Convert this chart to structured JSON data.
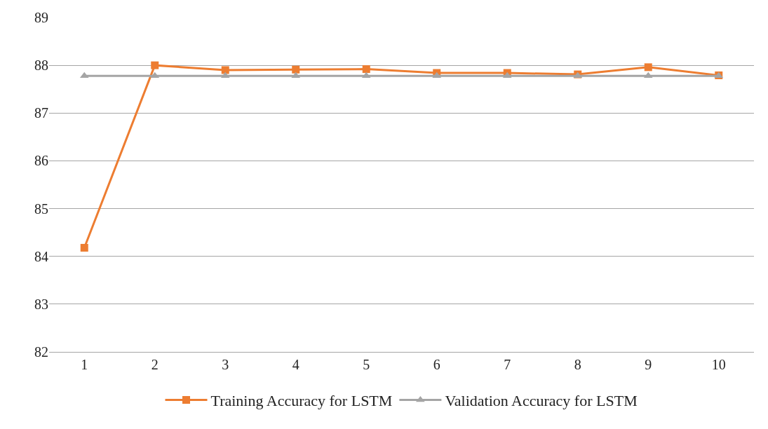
{
  "chart_data": {
    "type": "line",
    "categories": [
      "1",
      "2",
      "3",
      "4",
      "5",
      "6",
      "7",
      "8",
      "9",
      "10"
    ],
    "series": [
      {
        "name": "Training Accuracy for LSTM",
        "color": "#ed7d31",
        "marker": "square",
        "values": [
          84.18,
          88.0,
          87.9,
          87.91,
          87.92,
          87.84,
          87.84,
          87.81,
          87.96,
          87.79
        ]
      },
      {
        "name": "Validation Accuracy for LSTM",
        "color": "#a5a5a5",
        "marker": "triangle",
        "values": [
          87.78,
          87.78,
          87.78,
          87.78,
          87.78,
          87.78,
          87.78,
          87.78,
          87.78,
          87.78
        ]
      }
    ],
    "ylim": [
      82,
      89
    ],
    "yticks": [
      82,
      83,
      84,
      85,
      86,
      87,
      88,
      89
    ],
    "grid": "y",
    "legend": "bottom"
  }
}
